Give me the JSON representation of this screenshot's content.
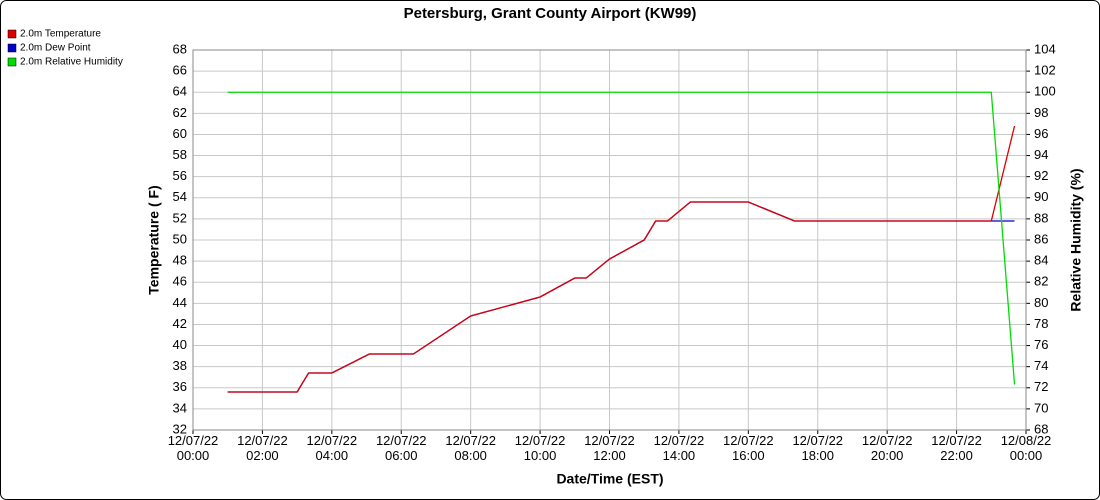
{
  "chart_data": {
    "type": "line",
    "title": "Petersburg, Grant County Airport (KW99)",
    "xlabel": "Date/Time (EST)",
    "ylabel": "Temperature ( F)",
    "y2label": "Relative Humidity (%)",
    "x": [
      1.0,
      3.0,
      3.33,
      4.0,
      5.08,
      6.35,
      8.0,
      10.0,
      11.0,
      11.33,
      12.0,
      13.0,
      13.33,
      13.67,
      14.33,
      16.0,
      17.33,
      23.0,
      23.67
    ],
    "series": [
      {
        "name": "2.0m Dew Point",
        "color": "#0000cc",
        "values": [
          35.6,
          35.6,
          37.4,
          37.4,
          39.2,
          39.2,
          42.8,
          44.6,
          46.4,
          46.4,
          48.2,
          50.0,
          51.8,
          51.8,
          53.6,
          53.6,
          51.8,
          51.8,
          51.8
        ]
      },
      {
        "name": "2.0m Temperature",
        "color": "#dd0000",
        "values": [
          35.6,
          35.6,
          37.4,
          37.4,
          39.2,
          39.2,
          42.8,
          44.6,
          46.4,
          46.4,
          48.2,
          50.0,
          51.8,
          51.8,
          53.6,
          53.6,
          51.8,
          51.8,
          60.8
        ]
      },
      {
        "name": "2.0m Relative Humidity",
        "color": "#00dd00",
        "axis": "y2",
        "values": [
          100,
          100,
          100,
          100,
          100,
          100,
          100,
          100,
          100,
          100,
          100,
          100,
          100,
          100,
          100,
          100,
          100,
          100,
          72.3
        ]
      }
    ],
    "legend_order": [
      1,
      0,
      2
    ],
    "xlim": [
      0,
      24
    ],
    "xticks": [
      {
        "value": 0,
        "label": "12/07/22\n00:00"
      },
      {
        "value": 2,
        "label": "12/07/22\n02:00"
      },
      {
        "value": 4,
        "label": "12/07/22\n04:00"
      },
      {
        "value": 6,
        "label": "12/07/22\n06:00"
      },
      {
        "value": 8,
        "label": "12/07/22\n08:00"
      },
      {
        "value": 10,
        "label": "12/07/22\n10:00"
      },
      {
        "value": 12,
        "label": "12/07/22\n12:00"
      },
      {
        "value": 14,
        "label": "12/07/22\n14:00"
      },
      {
        "value": 16,
        "label": "12/07/22\n16:00"
      },
      {
        "value": 18,
        "label": "12/07/22\n18:00"
      },
      {
        "value": 20,
        "label": "12/07/22\n20:00"
      },
      {
        "value": 22,
        "label": "12/07/22\n22:00"
      },
      {
        "value": 24,
        "label": "12/08/22\n00:00"
      }
    ],
    "ylim": [
      32,
      68
    ],
    "yticks": [
      32,
      34,
      36,
      38,
      40,
      42,
      44,
      46,
      48,
      50,
      52,
      54,
      56,
      58,
      60,
      62,
      64,
      66,
      68
    ],
    "y2lim": [
      68,
      104
    ],
    "y2ticks": [
      68,
      70,
      72,
      74,
      76,
      78,
      80,
      82,
      84,
      86,
      88,
      90,
      92,
      94,
      96,
      98,
      100,
      102,
      104
    ],
    "grid": true
  }
}
